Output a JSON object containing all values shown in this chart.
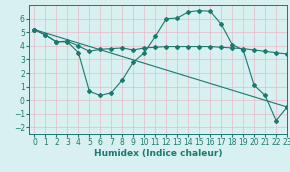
{
  "line1_x": [
    0,
    1,
    2,
    3,
    4,
    5,
    6,
    7,
    8,
    9,
    10,
    11,
    12,
    13,
    14,
    15,
    16,
    17,
    18,
    19,
    20,
    21,
    22,
    23
  ],
  "line1_y": [
    5.2,
    4.8,
    4.3,
    4.3,
    3.5,
    0.65,
    0.35,
    0.55,
    1.5,
    2.8,
    3.5,
    4.7,
    6.0,
    6.05,
    6.5,
    6.6,
    6.55,
    5.6,
    4.1,
    3.7,
    1.1,
    0.35,
    -1.5,
    -0.5
  ],
  "line2_x": [
    0,
    1,
    2,
    3,
    4,
    5,
    6,
    7,
    8,
    9,
    10,
    11,
    12,
    13,
    14,
    15,
    16,
    17,
    18,
    19,
    20,
    21,
    22,
    23
  ],
  "line2_y": [
    5.2,
    4.8,
    4.3,
    4.35,
    4.0,
    3.6,
    3.75,
    3.8,
    3.85,
    3.7,
    3.85,
    3.9,
    3.95,
    3.95,
    3.95,
    3.95,
    3.95,
    3.9,
    3.85,
    3.8,
    3.7,
    3.6,
    3.5,
    3.4
  ],
  "line3_x": [
    0,
    23
  ],
  "line3_y": [
    5.2,
    -0.5
  ],
  "color": "#1a7a6e",
  "bg_color": "#d8f0f0",
  "grid_color": "#e8b8c8",
  "xlabel": "Humidex (Indice chaleur)",
  "xlim": [
    -0.5,
    23
  ],
  "ylim": [
    -2.5,
    7.0
  ],
  "yticks": [
    -2,
    -1,
    0,
    1,
    2,
    3,
    4,
    5,
    6
  ],
  "xticks": [
    0,
    1,
    2,
    3,
    4,
    5,
    6,
    7,
    8,
    9,
    10,
    11,
    12,
    13,
    14,
    15,
    16,
    17,
    18,
    19,
    20,
    21,
    22,
    23
  ],
  "marker": "D",
  "markersize": 2.0,
  "linewidth": 0.8,
  "tick_fontsize": 5.5,
  "xlabel_fontsize": 6.5
}
